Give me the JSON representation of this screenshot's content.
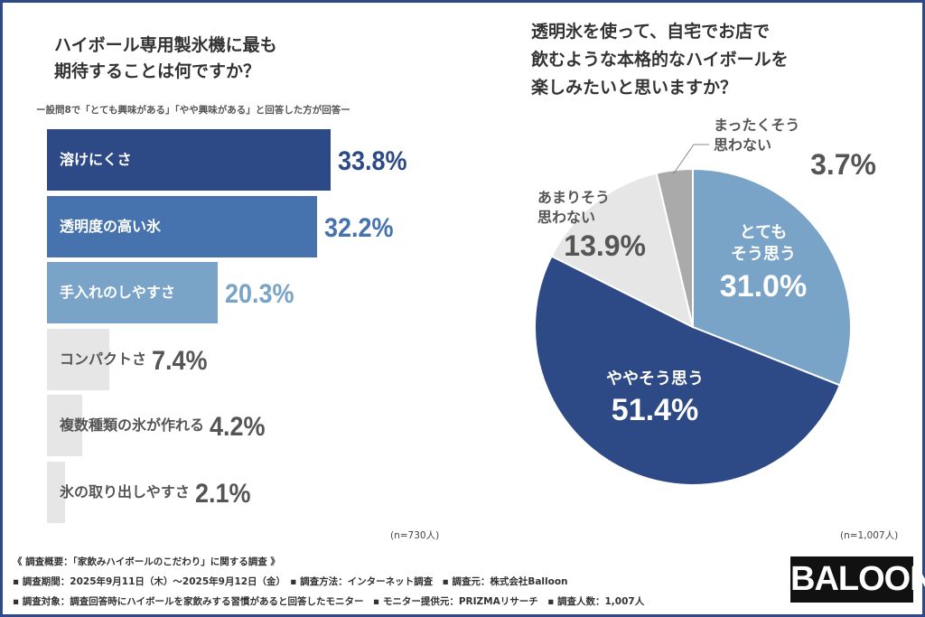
{
  "chart_data": [
    {
      "type": "bar",
      "title": "ハイボール専用製氷機に最も\n期待することは何ですか？",
      "subtitle": "ー設問8で「とても興味がある」「やや興味がある」と回答した方が回答ー",
      "categories": [
        "溶けにくさ",
        "透明度の高い氷",
        "手入れのしやすさ",
        "コンパクトさ",
        "複数種類の氷が作れる",
        "氷の取り出しやすさ"
      ],
      "values": [
        33.8,
        32.2,
        20.3,
        7.4,
        4.2,
        2.1
      ],
      "value_labels": [
        "33.8%",
        "32.2%",
        "20.3%",
        "7.4%",
        "4.2%",
        "2.1%"
      ],
      "colors": [
        "#2d4a86",
        "#4672ad",
        "#7aa3c8",
        "#e6e6e6",
        "#e6e6e6",
        "#e6e6e6"
      ],
      "label_colors": [
        "#ffffff",
        "#ffffff",
        "#ffffff",
        "#555555",
        "#555555",
        "#555555"
      ],
      "value_colors": [
        "#2d4a86",
        "#4672ad",
        "#7aa3c8",
        "#555555",
        "#555555",
        "#555555"
      ],
      "orientation": "horizontal",
      "note": "(n=730人)"
    },
    {
      "type": "pie",
      "title": "透明氷を使って、自宅でお店で\n飲むような本格的なハイボールを\n楽しみたいと思いますか？",
      "categories": [
        "とても\nそう思う",
        "ややそう思う",
        "あまりそう\n思わない",
        "まったくそう\n思わない"
      ],
      "values": [
        31.0,
        51.4,
        13.9,
        3.7
      ],
      "value_labels": [
        "31.0%",
        "51.4%",
        "13.9%",
        "3.7%"
      ],
      "colors": [
        "#7aa3c8",
        "#2d4a86",
        "#e6e6e6",
        "#aaaaaa"
      ],
      "start": "top, clockwise",
      "note": "(n=1,007人)"
    }
  ],
  "footer": {
    "line1": "《 調査概要：「家飲みハイボールのこだわり」に関する調査 》",
    "line2": "▪ 調査期間：2025年9月11日（木）～2025年9月12日（金）　▪ 調査方法：インターネット調査　▪ 調査元：株式会社Balloon",
    "line3": "▪ 調査対象：調査回答時にハイボールを家飲みする習慣があると回答したモニター　▪ モニター提供元：PRIZMAリサーチ　▪ 調査人数：1,007人",
    "logo": "BALOON"
  }
}
